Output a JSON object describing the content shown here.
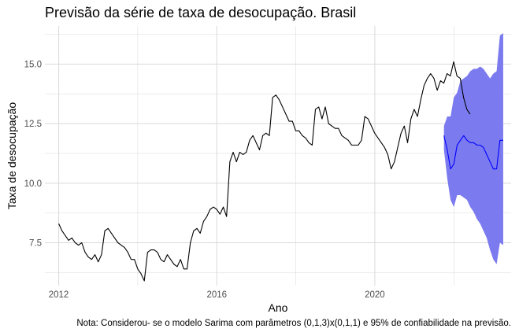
{
  "chart_data": {
    "type": "line",
    "title": "Previsão da série de taxa de desocupação. Brasil",
    "xlabel": "Ano",
    "ylabel": "Taxa de desocupação",
    "caption": "Nota: Considerou- se o modelo Sarima com parâmetros (0,1,3)x(0,1,1) e 95% de confiabilidade na previsão.",
    "xlim": [
      2011.65,
      2023.45
    ],
    "ylim": [
      5.7,
      16.6
    ],
    "x_ticks": [
      2012,
      2016,
      2020
    ],
    "x_tick_labels": [
      "2012",
      "2016",
      "2020"
    ],
    "y_ticks": [
      7.5,
      10.0,
      12.5,
      15.0
    ],
    "y_tick_labels": [
      "7.5",
      "10.0",
      "12.5",
      "15.0"
    ],
    "grid": true,
    "background": "#ffffff",
    "grid_color": "#d9d9d9",
    "series": [
      {
        "role": "observed",
        "color": "#000000",
        "x_start": 2012.0,
        "step": 0.0833,
        "values": [
          8.3,
          8.0,
          7.8,
          7.6,
          7.7,
          7.5,
          7.4,
          7.5,
          7.1,
          6.9,
          6.8,
          7.0,
          6.7,
          7.0,
          8.0,
          8.1,
          7.9,
          7.7,
          7.5,
          7.4,
          7.3,
          7.1,
          6.8,
          6.8,
          6.4,
          6.2,
          5.9,
          7.1,
          7.2,
          7.2,
          7.1,
          6.8,
          6.7,
          7.0,
          6.8,
          6.6,
          6.5,
          6.8,
          6.4,
          6.4,
          7.5,
          8.0,
          8.1,
          7.9,
          8.4,
          8.6,
          8.9,
          9.0,
          8.9,
          8.7,
          9.0,
          8.6,
          10.9,
          11.3,
          10.9,
          11.3,
          11.2,
          11.3,
          11.8,
          12.0,
          11.7,
          11.4,
          12.0,
          12.1,
          12.0,
          13.6,
          13.7,
          13.5,
          13.2,
          12.9,
          12.6,
          12.6,
          12.2,
          12.2,
          12.0,
          11.9,
          11.7,
          11.6,
          13.1,
          13.2,
          12.7,
          13.2,
          12.5,
          12.4,
          12.3,
          12.3,
          12.0,
          11.9,
          11.8,
          11.6,
          11.6,
          11.6,
          11.8,
          12.8,
          12.7,
          12.4,
          12.1,
          11.9,
          11.7,
          11.5,
          11.2,
          10.6,
          10.9,
          11.5,
          12.1,
          12.4,
          11.7,
          12.7,
          13.1,
          12.8,
          13.5,
          14.1,
          14.4,
          14.6,
          14.4,
          13.9,
          14.3,
          14.2,
          14.6,
          14.5,
          15.1,
          14.5,
          14.4,
          13.6,
          13.1,
          12.9
        ]
      },
      {
        "role": "forecast",
        "color": "#0000ff",
        "x_start": 2021.75,
        "step": 0.0833,
        "values": [
          12.0,
          11.4,
          10.6,
          10.8,
          11.6,
          11.8,
          12.0,
          11.8,
          11.7,
          11.7,
          11.6,
          11.6,
          11.5,
          11.2,
          10.9,
          10.6,
          10.6,
          11.8,
          11.8
        ],
        "band_upper": [
          12.4,
          12.8,
          12.8,
          13.6,
          13.8,
          14.3,
          14.4,
          14.5,
          14.7,
          14.8,
          14.8,
          14.9,
          14.8,
          14.6,
          14.4,
          14.6,
          14.7,
          16.2,
          16.3
        ],
        "band_lower": [
          11.4,
          10.2,
          9.3,
          9.0,
          9.5,
          9.5,
          9.4,
          9.3,
          9.0,
          8.8,
          8.5,
          8.3,
          8.0,
          7.7,
          7.2,
          6.8,
          6.6,
          7.5,
          7.4
        ],
        "band_color": "#7b7bef"
      }
    ]
  }
}
